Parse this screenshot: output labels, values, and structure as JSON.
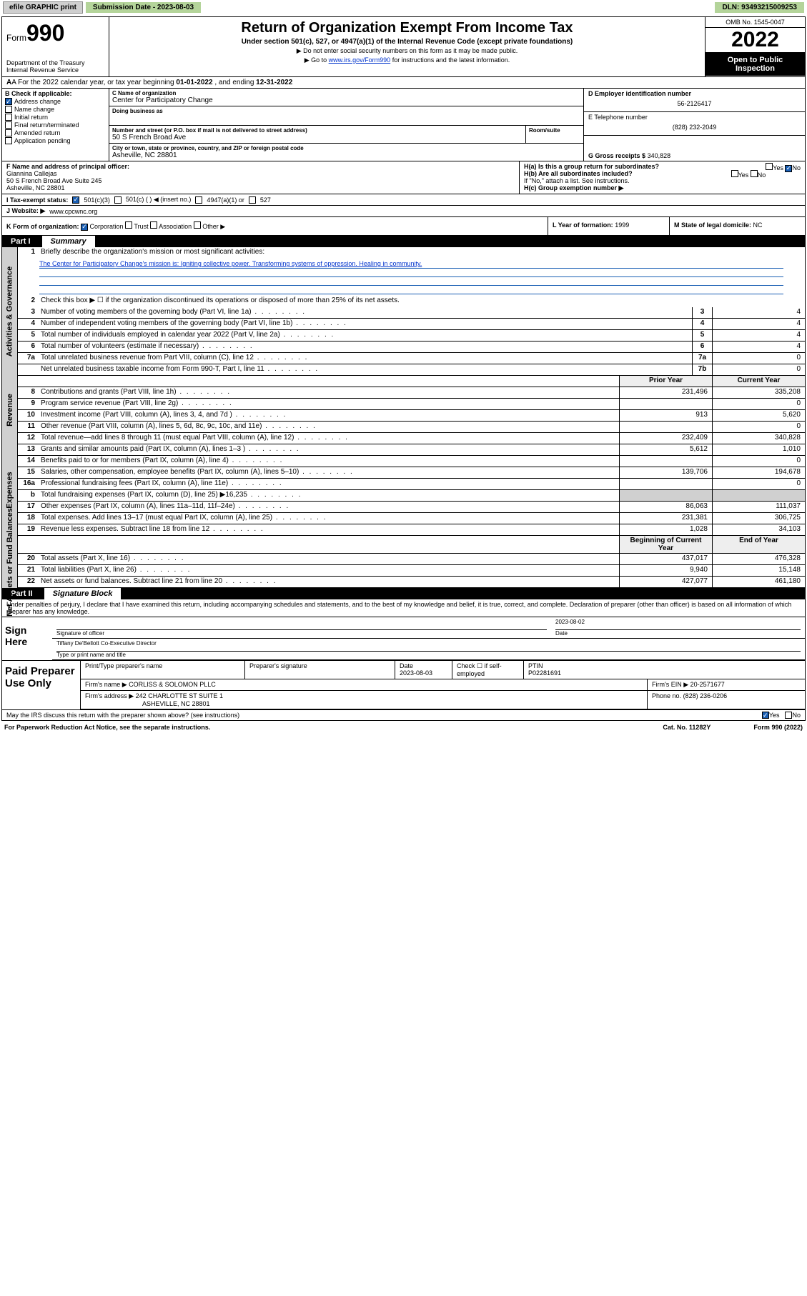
{
  "topbar": {
    "efile_label": "efile GRAPHIC print",
    "sub_label": "Submission Date - 2023-08-03",
    "dln_label": "DLN: 93493215009253"
  },
  "header": {
    "form_prefix": "Form",
    "form_number": "990",
    "title": "Return of Organization Exempt From Income Tax",
    "subtitle": "Under section 501(c), 527, or 4947(a)(1) of the Internal Revenue Code (except private foundations)",
    "instr1": "▶ Do not enter social security numbers on this form as it may be made public.",
    "instr2_pre": "▶ Go to ",
    "instr2_link": "www.irs.gov/Form990",
    "instr2_post": " for instructions and the latest information.",
    "dept": "Department of the Treasury\nInternal Revenue Service",
    "omb": "OMB No. 1545-0047",
    "year": "2022",
    "otp": "Open to Public Inspection"
  },
  "line_a": {
    "pre": "A For the 2022 calendar year, or tax year beginning ",
    "begin": "01-01-2022",
    "mid": " , and ending ",
    "end": "12-31-2022"
  },
  "section_b": {
    "label": "B Check if applicable:",
    "items": [
      {
        "label": "Address change",
        "checked": true
      },
      {
        "label": "Name change",
        "checked": false
      },
      {
        "label": "Initial return",
        "checked": false
      },
      {
        "label": "Final return/terminated",
        "checked": false
      },
      {
        "label": "Amended return",
        "checked": false
      },
      {
        "label": "Application pending",
        "checked": false
      }
    ]
  },
  "section_c": {
    "name_label": "C Name of organization",
    "name": "Center for Participatory Change",
    "dba_label": "Doing business as",
    "dba": "",
    "addr_label": "Number and street (or P.O. box if mail is not delivered to street address)",
    "room_label": "Room/suite",
    "street": "50 S French Broad Ave",
    "city_label": "City or town, state or province, country, and ZIP or foreign postal code",
    "city": "Asheville, NC  28801"
  },
  "section_d": {
    "label": "D Employer identification number",
    "value": "56-2126417"
  },
  "section_e": {
    "label": "E Telephone number",
    "value": "(828) 232-2049"
  },
  "section_g": {
    "label": "G Gross receipts $",
    "value": "340,828"
  },
  "section_f": {
    "label": "F Name and address of principal officer:",
    "name": "Giannina Callejas",
    "addr1": "50 S French Broad Ave Suite 245",
    "addr2": "Asheville, NC  28801"
  },
  "section_h": {
    "ha": "H(a)  Is this a group return for subordinates?",
    "ha_yes": false,
    "ha_no": true,
    "hb": "H(b)  Are all subordinates included?",
    "hb_note": "If \"No,\" attach a list. See instructions.",
    "hc": "H(c)  Group exemption number ▶"
  },
  "section_i": {
    "label": "I  Tax-exempt status:",
    "c501c3_checked": true,
    "c501c_label": "501(c)(3)",
    "c501c_other": "501(c) (  ) ◀ (insert no.)",
    "c4947": "4947(a)(1) or",
    "c527": "527"
  },
  "section_j": {
    "label": "J  Website: ▶",
    "value": "www.cpcwnc.org"
  },
  "section_k": {
    "label": "K Form of organization:",
    "corp": "Corporation",
    "trust": "Trust",
    "assoc": "Association",
    "other": "Other ▶",
    "corp_checked": true
  },
  "section_l": {
    "label": "L Year of formation:",
    "value": "1999"
  },
  "section_m": {
    "label": "M State of legal domicile:",
    "value": "NC"
  },
  "part1": {
    "num": "Part I",
    "title": "Summary"
  },
  "summary": {
    "mission_q": "Briefly describe the organization's mission or most significant activities:",
    "mission": "The Center for Participatory Change's mission is: Igniting collective power. Transforming systems of oppression. Healing in community.",
    "q2": "Check this box ▶ ☐  if the organization discontinued its operations or disposed of more than 25% of its net assets.",
    "rows_a": [
      {
        "n": "3",
        "d": "Number of voting members of the governing body (Part VI, line 1a)",
        "box": "3",
        "v": "4"
      },
      {
        "n": "4",
        "d": "Number of independent voting members of the governing body (Part VI, line 1b)",
        "box": "4",
        "v": "4"
      },
      {
        "n": "5",
        "d": "Total number of individuals employed in calendar year 2022 (Part V, line 2a)",
        "box": "5",
        "v": "4"
      },
      {
        "n": "6",
        "d": "Total number of volunteers (estimate if necessary)",
        "box": "6",
        "v": "4"
      },
      {
        "n": "7a",
        "d": "Total unrelated business revenue from Part VIII, column (C), line 12",
        "box": "7a",
        "v": "0"
      },
      {
        "n": "",
        "d": "Net unrelated business taxable income from Form 990-T, Part I, line 11",
        "box": "7b",
        "v": "0"
      }
    ],
    "hdr_prior": "Prior Year",
    "hdr_curr": "Current Year",
    "rows_rev": [
      {
        "n": "8",
        "d": "Contributions and grants (Part VIII, line 1h)",
        "p": "231,496",
        "c": "335,208"
      },
      {
        "n": "9",
        "d": "Program service revenue (Part VIII, line 2g)",
        "p": "",
        "c": "0"
      },
      {
        "n": "10",
        "d": "Investment income (Part VIII, column (A), lines 3, 4, and 7d )",
        "p": "913",
        "c": "5,620"
      },
      {
        "n": "11",
        "d": "Other revenue (Part VIII, column (A), lines 5, 6d, 8c, 9c, 10c, and 11e)",
        "p": "",
        "c": "0"
      },
      {
        "n": "12",
        "d": "Total revenue—add lines 8 through 11 (must equal Part VIII, column (A), line 12)",
        "p": "232,409",
        "c": "340,828"
      }
    ],
    "rows_exp": [
      {
        "n": "13",
        "d": "Grants and similar amounts paid (Part IX, column (A), lines 1–3 )",
        "p": "5,612",
        "c": "1,010"
      },
      {
        "n": "14",
        "d": "Benefits paid to or for members (Part IX, column (A), line 4)",
        "p": "",
        "c": "0"
      },
      {
        "n": "15",
        "d": "Salaries, other compensation, employee benefits (Part IX, column (A), lines 5–10)",
        "p": "139,706",
        "c": "194,678"
      },
      {
        "n": "16a",
        "d": "Professional fundraising fees (Part IX, column (A), line 11e)",
        "p": "",
        "c": "0"
      },
      {
        "n": "b",
        "d": "Total fundraising expenses (Part IX, column (D), line 25) ▶16,235",
        "p": "",
        "c": "",
        "gray": true
      },
      {
        "n": "17",
        "d": "Other expenses (Part IX, column (A), lines 11a–11d, 11f–24e)",
        "p": "86,063",
        "c": "111,037"
      },
      {
        "n": "18",
        "d": "Total expenses. Add lines 13–17 (must equal Part IX, column (A), line 25)",
        "p": "231,381",
        "c": "306,725"
      },
      {
        "n": "19",
        "d": "Revenue less expenses. Subtract line 18 from line 12",
        "p": "1,028",
        "c": "34,103"
      }
    ],
    "hdr_begin": "Beginning of Current Year",
    "hdr_end": "End of Year",
    "rows_net": [
      {
        "n": "20",
        "d": "Total assets (Part X, line 16)",
        "p": "437,017",
        "c": "476,328"
      },
      {
        "n": "21",
        "d": "Total liabilities (Part X, line 26)",
        "p": "9,940",
        "c": "15,148"
      },
      {
        "n": "22",
        "d": "Net assets or fund balances. Subtract line 21 from line 20",
        "p": "427,077",
        "c": "461,180"
      }
    ],
    "side_labels": {
      "a": "Activities & Governance",
      "r": "Revenue",
      "e": "Expenses",
      "n": "Net Assets or Fund Balances"
    }
  },
  "part2": {
    "num": "Part II",
    "title": "Signature Block"
  },
  "sig": {
    "decl": "Under penalties of perjury, I declare that I have examined this return, including accompanying schedules and statements, and to the best of my knowledge and belief, it is true, correct, and complete. Declaration of preparer (other than officer) is based on all information of which preparer has any knowledge.",
    "sign_here": "Sign Here",
    "sig_label": "Signature of officer",
    "date_label": "Date",
    "date": "2023-08-02",
    "name_title": "Tiffany De'Bellott  Co-Executive Director",
    "name_label": "Type or print name and title"
  },
  "paid": {
    "title": "Paid Preparer Use Only",
    "h1": "Print/Type preparer's name",
    "h2": "Preparer's signature",
    "h3": "Date",
    "date": "2023-08-03",
    "h4": "Check ☐ if self-employed",
    "h5": "PTIN",
    "ptin": "P02281691",
    "firm_name_label": "Firm's name    ▶",
    "firm_name": "CORLISS & SOLOMON PLLC",
    "firm_ein_label": "Firm's EIN ▶",
    "firm_ein": "20-2571677",
    "firm_addr_label": "Firm's address ▶",
    "firm_addr1": "242 CHARLOTTE ST SUITE 1",
    "firm_addr2": "ASHEVILLE, NC  28801",
    "phone_label": "Phone no.",
    "phone": "(828) 236-0206"
  },
  "footer": {
    "discuss": "May the IRS discuss this return with the preparer shown above? (see instructions)",
    "yes_checked": true,
    "pra": "For Paperwork Reduction Act Notice, see the separate instructions.",
    "cat": "Cat. No. 11282Y",
    "form": "Form 990 (2022)"
  },
  "colors": {
    "link": "#0033cc",
    "checked_bg": "#1a5fb4",
    "topbar_green": "#b4d49a",
    "gray_btn": "#cfcfcf"
  }
}
